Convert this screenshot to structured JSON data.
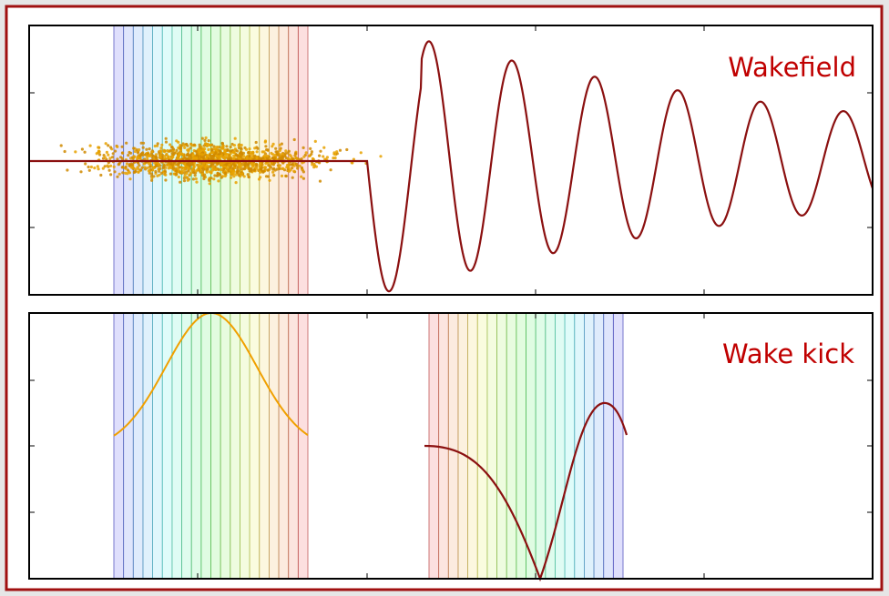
{
  "panels": [
    {
      "label": "Wakefield"
    },
    {
      "label": "Wake kick"
    }
  ]
}
